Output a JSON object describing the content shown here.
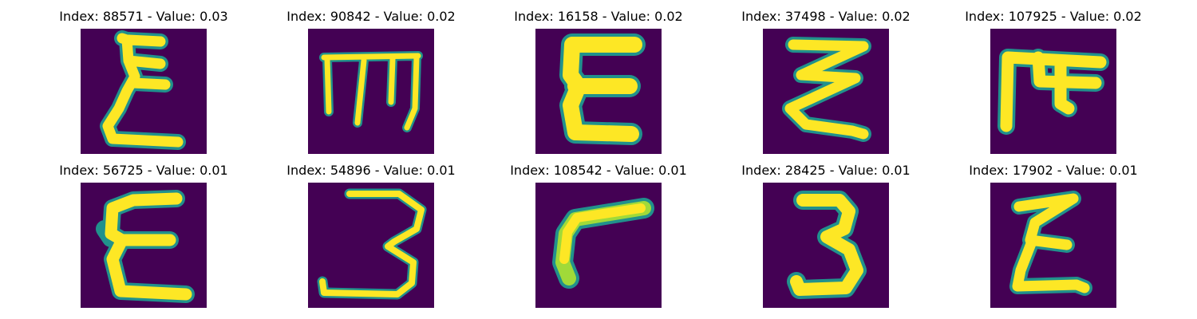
{
  "colors": {
    "background": "#440154",
    "stroke_core": "#fde725",
    "stroke_mid": "#a0da39",
    "stroke_edge": "#21918c"
  },
  "panels": [
    {
      "title": "Index: 88571 - Value: 0.03",
      "glyph": "epsilon-tall"
    },
    {
      "title": "Index: 90842 - Value: 0.02",
      "glyph": "m-shape"
    },
    {
      "title": "Index: 16158 - Value: 0.02",
      "glyph": "epsilon-wide"
    },
    {
      "title": "Index: 37498 - Value: 0.02",
      "glyph": "zigzag"
    },
    {
      "title": "Index: 107925 - Value: 0.02",
      "glyph": "hook-top"
    },
    {
      "title": "Index: 56725 - Value: 0.01",
      "glyph": "epsilon-round"
    },
    {
      "title": "Index: 54896 - Value: 0.01",
      "glyph": "three-open"
    },
    {
      "title": "Index: 108542 - Value: 0.01",
      "glyph": "corner"
    },
    {
      "title": "Index: 28425 - Value: 0.01",
      "glyph": "three"
    },
    {
      "title": "Index: 17902 - Value: 0.01",
      "glyph": "epsilon-slant"
    }
  ]
}
